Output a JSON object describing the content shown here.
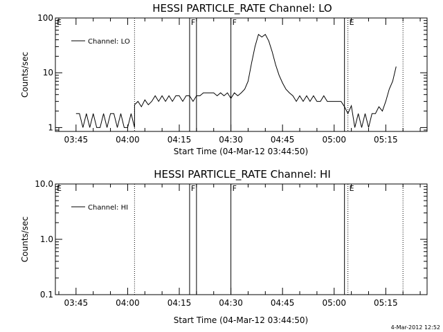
{
  "timestamp": "4-Mar-2012 12:52",
  "line_color": "#000000",
  "chart_data": [
    {
      "type": "line",
      "title": "HESSI PARTICLE_RATE Channel: LO",
      "xlabel": "Start Time (04-Mar-12 03:44:50)",
      "ylabel": "Counts/sec",
      "yscale": "log",
      "xlim": [
        "03:39",
        "05:27"
      ],
      "ylim": [
        0.85,
        100
      ],
      "x_ticks": [
        "03:45",
        "04:00",
        "04:15",
        "04:30",
        "04:45",
        "05:00",
        "05:15"
      ],
      "y_ticks": [
        "1",
        "10",
        "100"
      ],
      "legend": {
        "entries": [
          "Channel: LO"
        ],
        "position": "top-left"
      },
      "markers": [
        {
          "time": "03:39",
          "style": "dotted",
          "label": "E"
        },
        {
          "time": "04:02",
          "style": "dotted",
          "label": ""
        },
        {
          "time": "04:18",
          "style": "solid",
          "label": "F"
        },
        {
          "time": "04:20",
          "style": "solid",
          "label": ""
        },
        {
          "time": "04:30",
          "style": "solid",
          "label": "F"
        },
        {
          "time": "05:03",
          "style": "solid",
          "label": ""
        },
        {
          "time": "05:04",
          "style": "dotted",
          "label": "E"
        },
        {
          "time": "05:20",
          "style": "dotted",
          "label": ""
        }
      ],
      "series": [
        {
          "name": "Channel: LO",
          "segments": [
            [
              [
                "03:45",
                1.8
              ],
              [
                "03:46",
                1.8
              ],
              [
                "03:47",
                1.0
              ],
              [
                "03:48",
                1.8
              ],
              [
                "03:49",
                1.0
              ],
              [
                "03:50",
                1.8
              ],
              [
                "03:51",
                1.0
              ],
              [
                "03:52",
                1.0
              ],
              [
                "03:53",
                1.8
              ],
              [
                "03:54",
                1.0
              ],
              [
                "03:55",
                1.8
              ],
              [
                "03:56",
                1.8
              ],
              [
                "03:57",
                1.0
              ],
              [
                "03:58",
                1.8
              ],
              [
                "03:59",
                1.0
              ],
              [
                "04:00",
                1.0
              ],
              [
                "04:01",
                1.8
              ],
              [
                "04:02",
                1.0
              ],
              [
                "04:02",
                2.6
              ],
              [
                "04:03",
                3.0
              ],
              [
                "04:04",
                2.4
              ],
              [
                "04:05",
                3.2
              ],
              [
                "04:06",
                2.6
              ],
              [
                "04:07",
                3.0
              ],
              [
                "04:08",
                3.8
              ],
              [
                "04:09",
                3.0
              ],
              [
                "04:10",
                3.8
              ],
              [
                "04:11",
                3.0
              ],
              [
                "04:12",
                3.8
              ],
              [
                "04:13",
                3.0
              ],
              [
                "04:14",
                3.8
              ],
              [
                "04:15",
                3.8
              ],
              [
                "04:16",
                3.0
              ],
              [
                "04:17",
                3.8
              ],
              [
                "04:18",
                3.8
              ],
              [
                "04:19",
                3.0
              ],
              [
                "04:20",
                3.8
              ],
              [
                "04:21",
                3.8
              ],
              [
                "04:22",
                4.3
              ],
              [
                "04:23",
                4.3
              ],
              [
                "04:24",
                4.3
              ],
              [
                "04:25",
                4.3
              ],
              [
                "04:26",
                3.8
              ],
              [
                "04:27",
                4.3
              ],
              [
                "04:28",
                3.8
              ],
              [
                "04:29",
                4.3
              ],
              [
                "04:30",
                3.4
              ],
              [
                "04:31",
                4.3
              ],
              [
                "04:32",
                3.8
              ],
              [
                "04:33",
                4.3
              ],
              [
                "04:34",
                5.0
              ],
              [
                "04:35",
                7.0
              ],
              [
                "04:36",
                15.0
              ],
              [
                "04:37",
                30.0
              ],
              [
                "04:38",
                50.0
              ],
              [
                "04:39",
                45.0
              ],
              [
                "04:40",
                50.0
              ],
              [
                "04:41",
                38.0
              ],
              [
                "04:42",
                24.0
              ],
              [
                "04:43",
                14.0
              ],
              [
                "04:44",
                9.0
              ],
              [
                "04:45",
                6.5
              ],
              [
                "04:46",
                5.0
              ],
              [
                "04:47",
                4.3
              ],
              [
                "04:48",
                3.8
              ],
              [
                "04:49",
                3.0
              ],
              [
                "04:50",
                3.8
              ],
              [
                "04:51",
                3.0
              ],
              [
                "04:52",
                3.8
              ],
              [
                "04:53",
                3.0
              ],
              [
                "04:54",
                3.8
              ],
              [
                "04:55",
                3.0
              ],
              [
                "04:56",
                3.0
              ],
              [
                "04:57",
                3.8
              ],
              [
                "04:58",
                3.0
              ],
              [
                "04:59",
                3.0
              ],
              [
                "05:00",
                3.0
              ],
              [
                "05:01",
                3.0
              ],
              [
                "05:02",
                3.0
              ],
              [
                "05:03",
                2.4
              ],
              [
                "05:04",
                1.8
              ],
              [
                "05:05",
                2.5
              ],
              [
                "05:06",
                1.0
              ],
              [
                "05:07",
                1.8
              ],
              [
                "05:08",
                1.0
              ],
              [
                "05:09",
                1.8
              ],
              [
                "05:10",
                1.0
              ],
              [
                "05:11",
                1.8
              ],
              [
                "05:12",
                1.8
              ],
              [
                "05:13",
                2.4
              ],
              [
                "05:14",
                2.0
              ],
              [
                "05:15",
                3.0
              ],
              [
                "05:16",
                5.0
              ],
              [
                "05:17",
                7.0
              ],
              [
                "05:18",
                13.0
              ]
            ]
          ]
        }
      ]
    },
    {
      "type": "line",
      "title": "HESSI PARTICLE_RATE Channel: HI",
      "xlabel": "Start Time (04-Mar-12 03:44:50)",
      "ylabel": "Counts/sec",
      "yscale": "log",
      "xlim": [
        "03:39",
        "05:27"
      ],
      "ylim": [
        0.1,
        10.0
      ],
      "x_ticks": [
        "03:45",
        "04:00",
        "04:15",
        "04:30",
        "04:45",
        "05:00",
        "05:15"
      ],
      "y_ticks": [
        "0.1",
        "1.0",
        "10.0"
      ],
      "legend": {
        "entries": [
          "Channel: HI"
        ],
        "position": "top-left"
      },
      "markers": [
        {
          "time": "03:39",
          "style": "dotted",
          "label": "E"
        },
        {
          "time": "04:02",
          "style": "dotted",
          "label": ""
        },
        {
          "time": "04:18",
          "style": "solid",
          "label": "F"
        },
        {
          "time": "04:20",
          "style": "solid",
          "label": ""
        },
        {
          "time": "04:30",
          "style": "solid",
          "label": "F"
        },
        {
          "time": "05:03",
          "style": "solid",
          "label": ""
        },
        {
          "time": "05:04",
          "style": "dotted",
          "label": "E"
        },
        {
          "time": "05:20",
          "style": "dotted",
          "label": ""
        }
      ],
      "series": [
        {
          "name": "Channel: HI",
          "segments": []
        }
      ]
    }
  ]
}
